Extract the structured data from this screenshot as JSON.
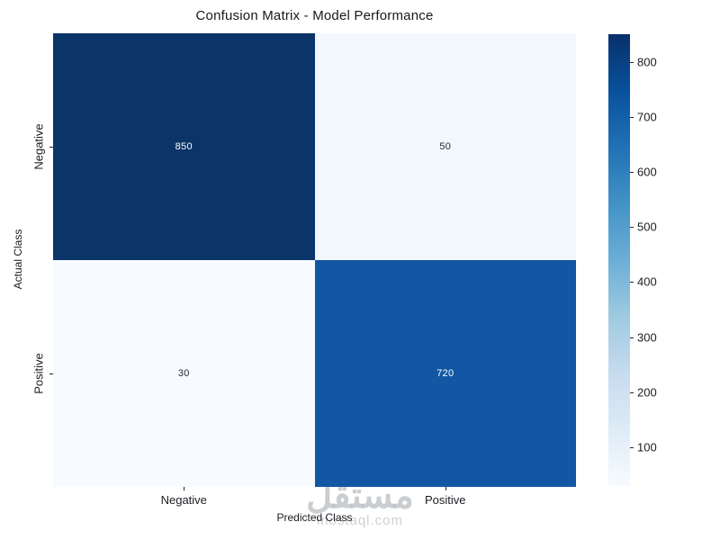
{
  "chart_data": {
    "type": "heatmap",
    "title": "Confusion Matrix - Model Performance",
    "xlabel": "Predicted Class",
    "ylabel": "Actual Class",
    "x_categories": [
      "Negative",
      "Positive"
    ],
    "y_categories": [
      "Negative",
      "Positive"
    ],
    "values": [
      [
        850,
        50
      ],
      [
        30,
        720
      ]
    ],
    "vmin": 30,
    "vmax": 850,
    "colorbar_ticks": [
      100,
      200,
      300,
      400,
      500,
      600,
      700,
      800
    ],
    "colormap_name": "Blues",
    "colormap_stops": [
      "#f7fbff",
      "#deebf7",
      "#c6dbef",
      "#9ecae1",
      "#6baed6",
      "#4292c6",
      "#2171b5",
      "#08519c",
      "#08306b"
    ],
    "cell_colors": [
      [
        "#0b3468",
        "#f2f7fd"
      ],
      [
        "#f7fbff",
        "#1157a4"
      ]
    ],
    "cell_text_colors": [
      [
        "#ffffff",
        "#24282c"
      ],
      [
        "#24282c",
        "#ffffff"
      ]
    ],
    "legend_position": "right-colorbar",
    "grid": false,
    "annotated": true
  },
  "watermark": {
    "arabic_text": "مستقل",
    "domain_text": "mostaql.com"
  }
}
